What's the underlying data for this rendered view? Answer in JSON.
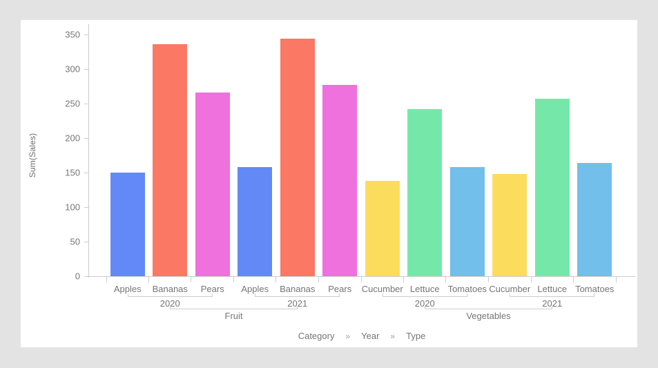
{
  "background_color": "#e3e3e3",
  "panel_color": "#ffffff",
  "text_color": "#757575",
  "axis_line_color": "#cccccc",
  "chart_data": {
    "type": "bar",
    "title": "",
    "ylabel": "Sum(Sales)",
    "xlabel": "",
    "ylim": [
      0,
      350
    ],
    "yticks": [
      0,
      50,
      100,
      150,
      200,
      250,
      300,
      350
    ],
    "grid": false,
    "legend": "none",
    "axis_hierarchy": {
      "parts": [
        "Category",
        "Year",
        "Type"
      ],
      "separator": "»"
    },
    "category_groups": [
      {
        "label": "Fruit"
      },
      {
        "label": "Vegetables"
      }
    ],
    "year_groups": [
      {
        "category": "Fruit",
        "label": "2020",
        "bars": [
          {
            "label": "Apples",
            "value": 150,
            "color": "#6389f6"
          },
          {
            "label": "Bananas",
            "value": 336,
            "color": "#fa7864"
          },
          {
            "label": "Pears",
            "value": 266,
            "color": "#ee71dd"
          }
        ]
      },
      {
        "category": "Fruit",
        "label": "2021",
        "bars": [
          {
            "label": "Apples",
            "value": 158,
            "color": "#6389f6"
          },
          {
            "label": "Bananas",
            "value": 344,
            "color": "#fa7864"
          },
          {
            "label": "Pears",
            "value": 277,
            "color": "#ee71dd"
          }
        ]
      },
      {
        "category": "Vegetables",
        "label": "2020",
        "bars": [
          {
            "label": "Cucumber",
            "value": 138,
            "color": "#fcdc5c"
          },
          {
            "label": "Lettuce",
            "value": 242,
            "color": "#75e8a9"
          },
          {
            "label": "Tomatoes",
            "value": 158,
            "color": "#71bfea"
          }
        ]
      },
      {
        "category": "Vegetables",
        "label": "2021",
        "bars": [
          {
            "label": "Cucumber",
            "value": 148,
            "color": "#fcdc5c"
          },
          {
            "label": "Lettuce",
            "value": 257,
            "color": "#75e8a9"
          },
          {
            "label": "Tomatoes",
            "value": 164,
            "color": "#71bfea"
          }
        ]
      }
    ]
  }
}
